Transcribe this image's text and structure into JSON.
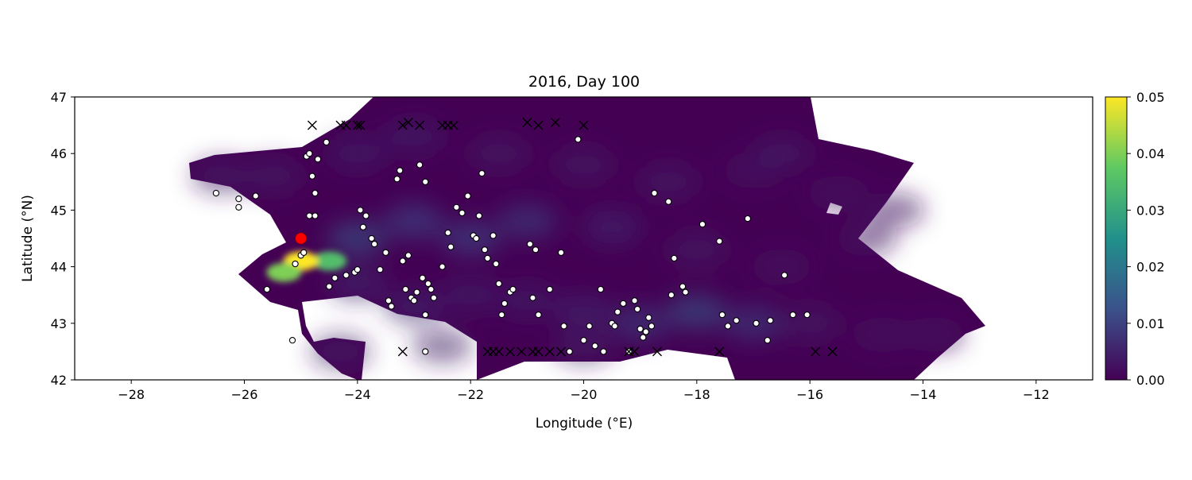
{
  "chart_data": {
    "type": "heatmap",
    "title": "2016, Day 100",
    "xlabel": "Longitude (°E)",
    "ylabel": "Latitude (°N)",
    "xlim": [
      -29,
      -11
    ],
    "ylim": [
      42,
      47
    ],
    "x_ticks": [
      -28,
      -26,
      -24,
      -22,
      -20,
      -18,
      -16,
      -14,
      -12
    ],
    "y_ticks": [
      42,
      43,
      44,
      45,
      46,
      47
    ],
    "grid": false,
    "colorbar": {
      "colormap": "viridis",
      "range": [
        0.0,
        0.05
      ],
      "ticks": [
        "0.00",
        "0.01",
        "0.02",
        "0.03",
        "0.04",
        "0.05"
      ],
      "colors": [
        "#440154",
        "#3b528b",
        "#21918c",
        "#5ec962",
        "#fde725"
      ]
    },
    "heatmap_cells": [
      [
        -26.4,
        45.6,
        0.004
      ],
      [
        -25.5,
        45.6,
        0.004
      ],
      [
        -24.0,
        46.0,
        0.005
      ],
      [
        -23.0,
        46.3,
        0.005
      ],
      [
        -21.5,
        46.0,
        0.004
      ],
      [
        -20.0,
        45.8,
        0.004
      ],
      [
        -18.5,
        45.5,
        0.004
      ],
      [
        -17.0,
        45.7,
        0.003
      ],
      [
        -16.5,
        46.0,
        0.004
      ],
      [
        -15.5,
        45.3,
        0.003
      ],
      [
        -14.5,
        45.0,
        0.003
      ],
      [
        -15.0,
        44.5,
        0.003
      ],
      [
        -16.5,
        44.0,
        0.003
      ],
      [
        -18.0,
        44.3,
        0.004
      ],
      [
        -19.5,
        44.7,
        0.006
      ],
      [
        -21.0,
        44.8,
        0.01
      ],
      [
        -22.0,
        44.5,
        0.012
      ],
      [
        -23.0,
        44.8,
        0.012
      ],
      [
        -24.0,
        44.5,
        0.015
      ],
      [
        -24.5,
        44.1,
        0.035
      ],
      [
        -25.0,
        44.1,
        0.05
      ],
      [
        -25.3,
        43.9,
        0.04
      ],
      [
        -24.0,
        43.7,
        0.006
      ],
      [
        -23.0,
        43.3,
        0.006
      ],
      [
        -22.0,
        43.5,
        0.005
      ],
      [
        -21.0,
        43.4,
        0.005
      ],
      [
        -20.0,
        43.2,
        0.006
      ],
      [
        -19.0,
        43.0,
        0.01
      ],
      [
        -18.0,
        43.2,
        0.015
      ],
      [
        -17.0,
        43.0,
        0.01
      ],
      [
        -16.0,
        43.0,
        0.004
      ],
      [
        -14.7,
        42.8,
        0.003
      ],
      [
        -13.8,
        42.8,
        0.003
      ],
      [
        -24.3,
        42.5,
        0.004
      ],
      [
        -22.5,
        42.6,
        0.004
      ],
      [
        -20.0,
        42.6,
        0.004
      ]
    ],
    "release_point": {
      "lon": -25.0,
      "lat": 44.5,
      "color": "#ff0000"
    },
    "open_circle_points": [
      [
        -26.5,
        45.3
      ],
      [
        -26.1,
        45.2
      ],
      [
        -26.1,
        45.05
      ],
      [
        -25.8,
        45.25
      ],
      [
        -25.6,
        43.6
      ],
      [
        -25.15,
        42.7
      ],
      [
        -25.1,
        44.05
      ],
      [
        -25.0,
        44.2
      ],
      [
        -24.95,
        44.25
      ],
      [
        -24.9,
        45.95
      ],
      [
        -24.85,
        46.0
      ],
      [
        -24.85,
        44.9
      ],
      [
        -24.8,
        45.6
      ],
      [
        -24.75,
        45.3
      ],
      [
        -24.75,
        44.9
      ],
      [
        -24.7,
        45.9
      ],
      [
        -24.55,
        46.2
      ],
      [
        -24.5,
        43.65
      ],
      [
        -24.4,
        43.8
      ],
      [
        -24.2,
        43.85
      ],
      [
        -24.05,
        43.9
      ],
      [
        -24.0,
        43.95
      ],
      [
        -23.95,
        45.0
      ],
      [
        -23.9,
        44.7
      ],
      [
        -23.85,
        44.9
      ],
      [
        -23.75,
        44.5
      ],
      [
        -23.7,
        44.4
      ],
      [
        -23.6,
        43.95
      ],
      [
        -23.5,
        44.25
      ],
      [
        -23.45,
        43.4
      ],
      [
        -23.4,
        43.3
      ],
      [
        -23.3,
        45.55
      ],
      [
        -23.25,
        45.7
      ],
      [
        -23.2,
        44.1
      ],
      [
        -23.15,
        43.6
      ],
      [
        -23.1,
        44.2
      ],
      [
        -23.05,
        43.45
      ],
      [
        -23.0,
        43.4
      ],
      [
        -22.95,
        43.55
      ],
      [
        -22.9,
        45.8
      ],
      [
        -22.8,
        45.5
      ],
      [
        -22.85,
        43.8
      ],
      [
        -22.75,
        43.7
      ],
      [
        -22.7,
        43.6
      ],
      [
        -22.65,
        43.45
      ],
      [
        -22.8,
        43.15
      ],
      [
        -22.8,
        42.5
      ],
      [
        -22.5,
        44.0
      ],
      [
        -22.4,
        44.6
      ],
      [
        -22.35,
        44.35
      ],
      [
        -22.25,
        45.05
      ],
      [
        -22.15,
        44.95
      ],
      [
        -22.05,
        45.25
      ],
      [
        -21.95,
        44.55
      ],
      [
        -21.9,
        44.5
      ],
      [
        -21.85,
        44.9
      ],
      [
        -21.8,
        45.65
      ],
      [
        -21.75,
        44.3
      ],
      [
        -21.7,
        44.15
      ],
      [
        -21.6,
        44.55
      ],
      [
        -21.55,
        44.05
      ],
      [
        -21.5,
        43.7
      ],
      [
        -21.45,
        43.15
      ],
      [
        -21.4,
        43.35
      ],
      [
        -21.3,
        43.55
      ],
      [
        -21.25,
        43.6
      ],
      [
        -20.95,
        44.4
      ],
      [
        -20.9,
        43.45
      ],
      [
        -20.85,
        44.3
      ],
      [
        -20.8,
        43.15
      ],
      [
        -20.6,
        43.6
      ],
      [
        -20.4,
        44.25
      ],
      [
        -20.35,
        42.95
      ],
      [
        -20.25,
        42.5
      ],
      [
        -20.1,
        46.25
      ],
      [
        -20.0,
        42.7
      ],
      [
        -19.9,
        42.95
      ],
      [
        -19.8,
        42.6
      ],
      [
        -19.7,
        43.6
      ],
      [
        -19.65,
        42.5
      ],
      [
        -19.5,
        43.0
      ],
      [
        -19.45,
        42.95
      ],
      [
        -19.4,
        43.2
      ],
      [
        -19.3,
        43.35
      ],
      [
        -19.2,
        42.5
      ],
      [
        -19.1,
        43.4
      ],
      [
        -19.05,
        43.25
      ],
      [
        -19.0,
        42.9
      ],
      [
        -18.95,
        42.75
      ],
      [
        -18.9,
        42.85
      ],
      [
        -18.85,
        43.1
      ],
      [
        -18.8,
        42.95
      ],
      [
        -18.75,
        45.3
      ],
      [
        -18.5,
        45.15
      ],
      [
        -18.45,
        43.5
      ],
      [
        -18.4,
        44.15
      ],
      [
        -18.25,
        43.65
      ],
      [
        -18.2,
        43.55
      ],
      [
        -17.9,
        44.75
      ],
      [
        -17.6,
        44.45
      ],
      [
        -17.55,
        43.15
      ],
      [
        -17.45,
        42.95
      ],
      [
        -17.3,
        43.05
      ],
      [
        -17.1,
        44.85
      ],
      [
        -16.95,
        43.0
      ],
      [
        -16.75,
        42.7
      ],
      [
        -16.7,
        43.05
      ],
      [
        -16.45,
        43.85
      ],
      [
        -16.3,
        43.15
      ],
      [
        -16.05,
        43.15
      ]
    ],
    "x_marker_points": [
      [
        -24.8,
        46.5
      ],
      [
        -24.3,
        46.5
      ],
      [
        -24.2,
        46.5
      ],
      [
        -24.0,
        46.5
      ],
      [
        -23.95,
        46.5
      ],
      [
        -23.2,
        46.5
      ],
      [
        -23.1,
        46.55
      ],
      [
        -22.9,
        46.5
      ],
      [
        -22.5,
        46.5
      ],
      [
        -22.4,
        46.5
      ],
      [
        -22.3,
        46.5
      ],
      [
        -21.0,
        46.55
      ],
      [
        -20.8,
        46.5
      ],
      [
        -20.5,
        46.55
      ],
      [
        -20.0,
        46.5
      ],
      [
        -23.2,
        42.5
      ],
      [
        -21.7,
        42.5
      ],
      [
        -21.6,
        42.5
      ],
      [
        -21.5,
        42.5
      ],
      [
        -21.3,
        42.5
      ],
      [
        -21.1,
        42.5
      ],
      [
        -20.9,
        42.5
      ],
      [
        -20.8,
        42.5
      ],
      [
        -20.6,
        42.5
      ],
      [
        -20.4,
        42.5
      ],
      [
        -19.2,
        42.5
      ],
      [
        -19.1,
        42.5
      ],
      [
        -18.7,
        42.5
      ],
      [
        -17.6,
        42.5
      ],
      [
        -15.9,
        42.5
      ],
      [
        -15.6,
        42.5
      ]
    ]
  }
}
